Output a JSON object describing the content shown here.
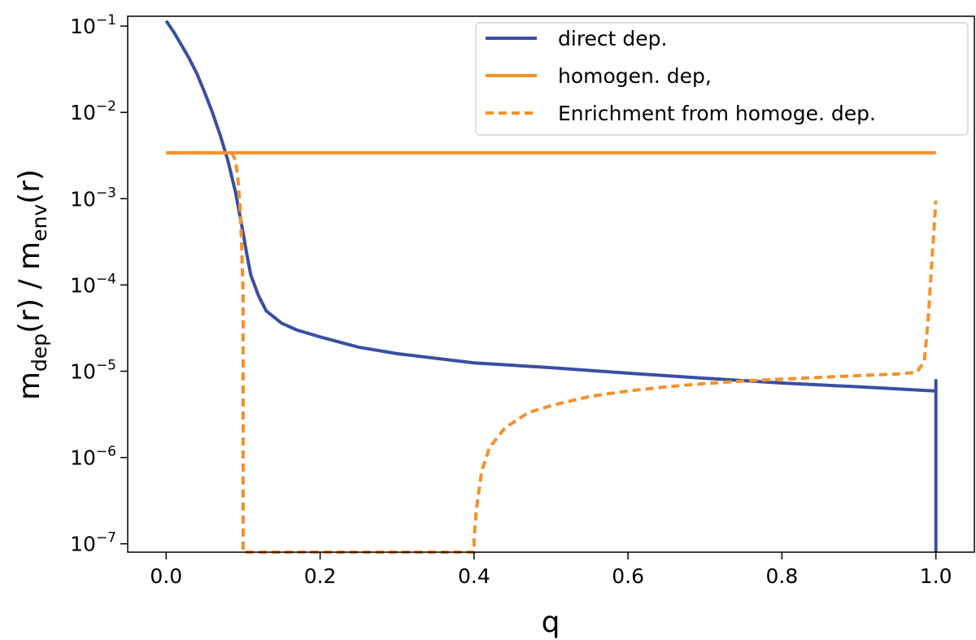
{
  "chart_data": {
    "type": "line",
    "title": "",
    "xlabel": "q",
    "ylabel": {
      "m1": "m",
      "sub1": "dep",
      "r1": "(r)",
      "slash": " / ",
      "m2": "m",
      "sub2": "env",
      "r2": "(r)"
    },
    "x_scale": "linear",
    "y_scale": "log",
    "xlim": [
      -0.05,
      1.05
    ],
    "ylim": [
      8e-08,
      0.13
    ],
    "grid": false,
    "legend_position": "top-right",
    "x_ticks": [
      {
        "value": 0.0,
        "label": "0.0"
      },
      {
        "value": 0.2,
        "label": "0.2"
      },
      {
        "value": 0.4,
        "label": "0.4"
      },
      {
        "value": 0.6,
        "label": "0.6"
      },
      {
        "value": 0.8,
        "label": "0.8"
      },
      {
        "value": 1.0,
        "label": "1.0"
      }
    ],
    "y_ticks": [
      {
        "value": 0.1,
        "base": "10",
        "exp": "−1"
      },
      {
        "value": 0.01,
        "base": "10",
        "exp": "−2"
      },
      {
        "value": 0.001,
        "base": "10",
        "exp": "−3"
      },
      {
        "value": 0.0001,
        "base": "10",
        "exp": "−4"
      },
      {
        "value": 1e-05,
        "base": "10",
        "exp": "−5"
      },
      {
        "value": 1e-06,
        "base": "10",
        "exp": "−6"
      },
      {
        "value": 1e-07,
        "base": "10",
        "exp": "−7"
      }
    ],
    "series": [
      {
        "name": "direct dep.",
        "color": "#3a4ea3",
        "style": "solid",
        "x": [
          0.0,
          0.01,
          0.02,
          0.03,
          0.04,
          0.05,
          0.06,
          0.07,
          0.08,
          0.09,
          0.1,
          0.105,
          0.11,
          0.12,
          0.13,
          0.15,
          0.17,
          0.2,
          0.25,
          0.3,
          0.4,
          0.5,
          0.6,
          0.7,
          0.8,
          0.9,
          1.0,
          1.0,
          1.0
        ],
        "y": [
          0.115,
          0.085,
          0.06,
          0.042,
          0.028,
          0.017,
          0.01,
          0.0055,
          0.0028,
          0.0012,
          0.0004,
          0.00022,
          0.00013,
          7.5e-05,
          5e-05,
          3.6e-05,
          3e-05,
          2.5e-05,
          1.9e-05,
          1.6e-05,
          1.25e-05,
          1.1e-05,
          9.5e-06,
          8.3e-06,
          7.3e-06,
          6.6e-06,
          5.9e-06,
          7.8e-06,
          8e-08
        ]
      },
      {
        "name": "homogen. dep,",
        "color": "#f5912b",
        "style": "solid",
        "x": [
          0.0,
          1.0
        ],
        "y": [
          0.0034,
          0.0034
        ]
      },
      {
        "name": "Enrichment from homoge. dep.",
        "color": "#f5912b",
        "style": "dashed",
        "x": [
          0.0,
          0.085,
          0.09,
          0.093,
          0.096,
          0.098,
          0.1,
          0.1,
          0.4,
          0.4,
          0.403,
          0.41,
          0.42,
          0.44,
          0.47,
          0.5,
          0.55,
          0.6,
          0.65,
          0.7,
          0.75,
          0.8,
          0.85,
          0.9,
          0.95,
          0.975,
          0.985,
          0.99,
          0.995,
          1.0
        ],
        "y": [
          0.0034,
          0.0034,
          0.0028,
          0.0018,
          0.0008,
          0.0003,
          8e-05,
          8e-08,
          8e-08,
          1.1e-07,
          2.5e-07,
          7e-07,
          1.3e-06,
          2.2e-06,
          3.3e-06,
          4e-06,
          5.1e-06,
          5.9e-06,
          6.6e-06,
          7.2e-06,
          7.7e-06,
          8.1e-06,
          8.5e-06,
          8.9e-06,
          9.3e-06,
          9.7e-06,
          1.3e-05,
          4e-05,
          0.0002,
          0.00095
        ]
      }
    ]
  }
}
